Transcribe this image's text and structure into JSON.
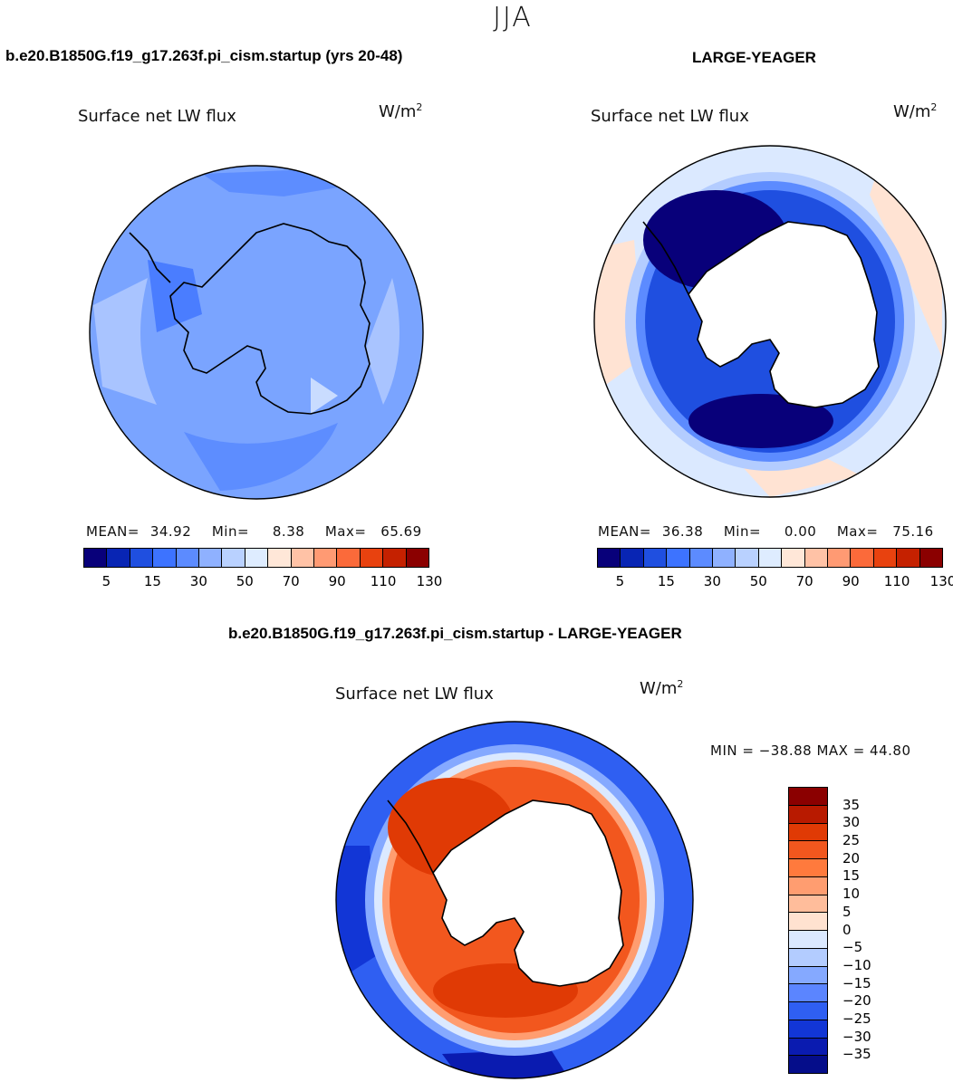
{
  "figure": {
    "season": "JJA",
    "case1_title": "b.e20.B1850G.f19_g17.263f.pi_cism.startup (yrs 20-48)",
    "case2_title": "LARGE-YEAGER",
    "diff_title": "b.e20.B1850G.f19_g17.263f.pi_cism.startup - LARGE-YEAGER"
  },
  "panels": {
    "top_left": {
      "variable": "Surface net LW flux",
      "units": "W/m",
      "units_sup": "2",
      "mean_label": "MEAN=",
      "mean": "34.92",
      "min_label": "Min=",
      "min": "8.38",
      "max_label": "Max=",
      "max": "65.69"
    },
    "top_right": {
      "variable": "Surface net LW flux",
      "units": "W/m",
      "units_sup": "2",
      "mean_label": "MEAN=",
      "mean": "36.38",
      "min_label": "Min=",
      "min": "0.00",
      "max_label": "Max=",
      "max": "75.16"
    },
    "bottom": {
      "variable": "Surface net LW flux",
      "units": "W/m",
      "units_sup": "2",
      "minmax": "MIN = −38.88 MAX =  44.80"
    }
  },
  "chart_data": [
    {
      "type": "heatmap",
      "title": "Surface net LW flux",
      "subtitle": "b.e20.B1850G.f19_g17.263f.pi_cism.startup (yrs 20-48)",
      "projection": "south polar stereographic",
      "units": "W/m2",
      "mean": 34.92,
      "min": 8.38,
      "max": 65.69,
      "contour_levels": [
        5,
        10,
        15,
        20,
        30,
        40,
        50,
        60,
        70,
        80,
        90,
        100,
        110,
        120,
        130
      ],
      "colorbar_tick_labels": [
        "5",
        "15",
        "30",
        "50",
        "70",
        "90",
        "110",
        "130"
      ],
      "colorbar_colors": [
        "#08007a",
        "#0825b4",
        "#1f4fe0",
        "#3d73ff",
        "#5c8bff",
        "#8fb1ff",
        "#b9d1ff",
        "#deecff",
        "#ffe7d8",
        "#ffc2a6",
        "#ff9a73",
        "#fb6a3a",
        "#e8420f",
        "#c52100",
        "#8b0000"
      ]
    },
    {
      "type": "heatmap",
      "title": "Surface net LW flux",
      "subtitle": "LARGE-YEAGER",
      "projection": "south polar stereographic",
      "units": "W/m2",
      "mean": 36.38,
      "min": 0.0,
      "max": 75.16,
      "contour_levels": [
        5,
        10,
        15,
        20,
        30,
        40,
        50,
        60,
        70,
        80,
        90,
        100,
        110,
        120,
        130
      ],
      "colorbar_tick_labels": [
        "5",
        "15",
        "30",
        "50",
        "70",
        "90",
        "110",
        "130"
      ],
      "colorbar_colors": [
        "#08007a",
        "#0825b4",
        "#1f4fe0",
        "#3d73ff",
        "#5c8bff",
        "#8fb1ff",
        "#b9d1ff",
        "#deecff",
        "#ffe7d8",
        "#ffc2a6",
        "#ff9a73",
        "#fb6a3a",
        "#e8420f",
        "#c52100",
        "#8b0000"
      ]
    },
    {
      "type": "heatmap",
      "title": "Surface net LW flux",
      "subtitle": "b.e20.B1850G.f19_g17.263f.pi_cism.startup - LARGE-YEAGER",
      "projection": "south polar stereographic",
      "units": "W/m2",
      "min": -38.88,
      "max": 44.8,
      "contour_levels": [
        35,
        30,
        25,
        20,
        15,
        10,
        5,
        0,
        -5,
        -10,
        -15,
        -20,
        -25,
        -30,
        -35
      ],
      "colorbar_tick_labels": [
        "35",
        "30",
        "25",
        "20",
        "15",
        "10",
        "5",
        "0",
        "−5",
        "−10",
        "−15",
        "−20",
        "−25",
        "−30",
        "−35"
      ],
      "colorbar_colors": [
        "#8b0000",
        "#b81a00",
        "#e03a05",
        "#f2571e",
        "#ff7a3d",
        "#ff9d70",
        "#ffbd9b",
        "#ffe2d0",
        "#dbe9ff",
        "#b3ccff",
        "#85a9ff",
        "#5b85ff",
        "#2f5ff2",
        "#1236d6",
        "#0a1bb0",
        "#050d8a"
      ]
    }
  ]
}
